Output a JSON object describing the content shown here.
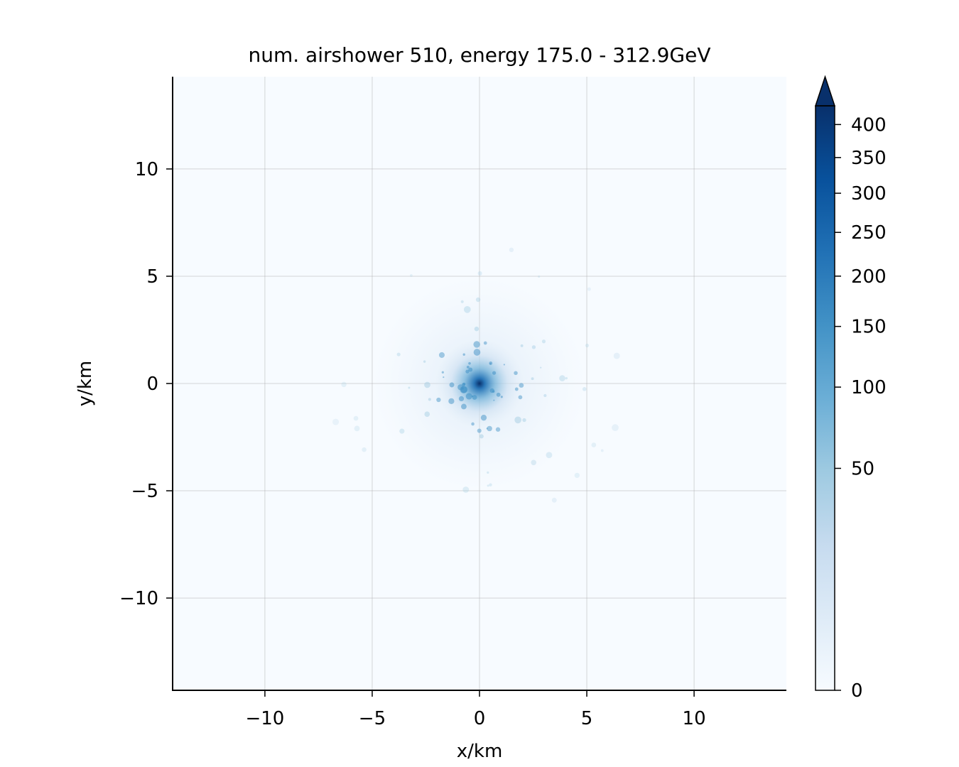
{
  "chart_data": {
    "type": "heatmap",
    "title": "num. airshower 510, energy 175.0 - 312.9GeV",
    "xlabel": "x/km",
    "ylabel": "y/km",
    "xlim": [
      -14.3,
      14.3
    ],
    "ylim": [
      -14.3,
      14.3
    ],
    "xticks": [
      -10,
      -5,
      0,
      5,
      10
    ],
    "yticks": [
      -10,
      -5,
      0,
      5,
      10
    ],
    "xtick_labels": [
      "−10",
      "−5",
      "0",
      "5",
      "10"
    ],
    "ytick_labels": [
      "−10",
      "−5",
      "0",
      "5",
      "10"
    ],
    "grid": true,
    "colormap": "Blues",
    "colorbar": {
      "ticks": [
        0,
        50,
        100,
        150,
        200,
        250,
        300,
        350,
        400
      ],
      "tick_labels": [
        "0",
        "50",
        "100",
        "150",
        "200",
        "250",
        "300",
        "350",
        "400"
      ],
      "max": 430,
      "extend": "max",
      "scale": "power"
    },
    "hotspot": {
      "x": 0,
      "y": 0,
      "peak_value": 430
    },
    "colors": {
      "background": "#f7fbff",
      "peak": "#08306b",
      "grid": "#b0b0b0"
    }
  }
}
